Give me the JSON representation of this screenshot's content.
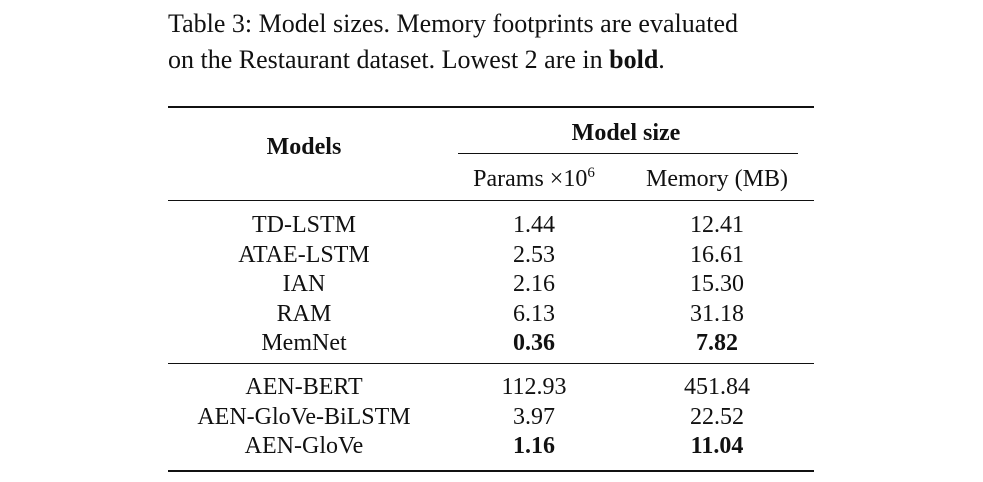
{
  "caption": {
    "prefix": "Table 3: Model sizes. Memory footprints are evaluated",
    "line2_pre": "on the Restaurant dataset. Lowest 2 are in ",
    "bold_word": "bold",
    "line2_post": "."
  },
  "header": {
    "models": "Models",
    "model_size": "Model size",
    "params_base": "Params ×10",
    "params_exp": "6",
    "memory": "Memory (MB)"
  },
  "rows_group1": [
    {
      "model": "TD-LSTM",
      "params": "1.44",
      "memory": "12.41",
      "bold": false
    },
    {
      "model": "ATAE-LSTM",
      "params": "2.53",
      "memory": "16.61",
      "bold": false
    },
    {
      "model": "IAN",
      "params": "2.16",
      "memory": "15.30",
      "bold": false
    },
    {
      "model": "RAM",
      "params": "6.13",
      "memory": "31.18",
      "bold": false
    },
    {
      "model": "MemNet",
      "params": "0.36",
      "memory": "7.82",
      "bold": true
    }
  ],
  "rows_group2": [
    {
      "model": "AEN-BERT",
      "params": "112.93",
      "memory": "451.84",
      "bold": false
    },
    {
      "model": "AEN-GloVe-BiLSTM",
      "params": "3.97",
      "memory": "22.52",
      "bold": false
    },
    {
      "model": "AEN-GloVe",
      "params": "1.16",
      "memory": "11.04",
      "bold": true
    }
  ]
}
